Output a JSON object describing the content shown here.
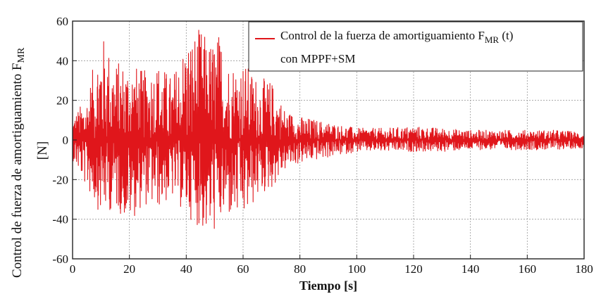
{
  "chart_data": {
    "type": "line",
    "xlabel": "Tiempo [s]",
    "ylabel_line1": "Control de fuerza de amortiguamiento F",
    "ylabel_line1_sub": "MR",
    "ylabel_line2": "[N]",
    "xlim": [
      0,
      180
    ],
    "ylim": [
      -60,
      60
    ],
    "x_ticks": [
      0,
      20,
      40,
      60,
      80,
      100,
      120,
      140,
      160,
      180
    ],
    "y_ticks": [
      -60,
      -40,
      -20,
      0,
      20,
      40,
      60
    ],
    "grid": true,
    "legend_position": "top-right",
    "series": [
      {
        "name_line1": "Control de la fuerza de amortiguamiento F",
        "name_sub": "MR",
        "name_tail": " (t)",
        "name_line2": "con MPPF+SM",
        "color": "#e0161b",
        "envelope": [
          {
            "x": 0,
            "max": 12,
            "min": -10
          },
          {
            "x": 5,
            "max": 22,
            "min": -25
          },
          {
            "x": 10,
            "max": 55,
            "min": -38
          },
          {
            "x": 15,
            "max": 40,
            "min": -35
          },
          {
            "x": 20,
            "max": 40,
            "min": -42
          },
          {
            "x": 25,
            "max": 35,
            "min": -33
          },
          {
            "x": 30,
            "max": 40,
            "min": -35
          },
          {
            "x": 35,
            "max": 32,
            "min": -30
          },
          {
            "x": 40,
            "max": 52,
            "min": -38
          },
          {
            "x": 45,
            "max": 57,
            "min": -45
          },
          {
            "x": 48,
            "max": 50,
            "min": -50
          },
          {
            "x": 52,
            "max": 55,
            "min": -44
          },
          {
            "x": 55,
            "max": 40,
            "min": -40
          },
          {
            "x": 60,
            "max": 40,
            "min": -42
          },
          {
            "x": 65,
            "max": 32,
            "min": -30
          },
          {
            "x": 70,
            "max": 30,
            "min": -25
          },
          {
            "x": 75,
            "max": 15,
            "min": -15
          },
          {
            "x": 80,
            "max": 12,
            "min": -12
          },
          {
            "x": 90,
            "max": 9,
            "min": -9
          },
          {
            "x": 100,
            "max": 6,
            "min": -6
          },
          {
            "x": 110,
            "max": 6,
            "min": -6
          },
          {
            "x": 120,
            "max": 7,
            "min": -6
          },
          {
            "x": 130,
            "max": 6,
            "min": -6
          },
          {
            "x": 140,
            "max": 5,
            "min": -5
          },
          {
            "x": 150,
            "max": 5,
            "min": -5
          },
          {
            "x": 160,
            "max": 5,
            "min": -5
          },
          {
            "x": 170,
            "max": 5,
            "min": -5
          },
          {
            "x": 180,
            "max": 4,
            "min": -4
          }
        ]
      }
    ]
  }
}
